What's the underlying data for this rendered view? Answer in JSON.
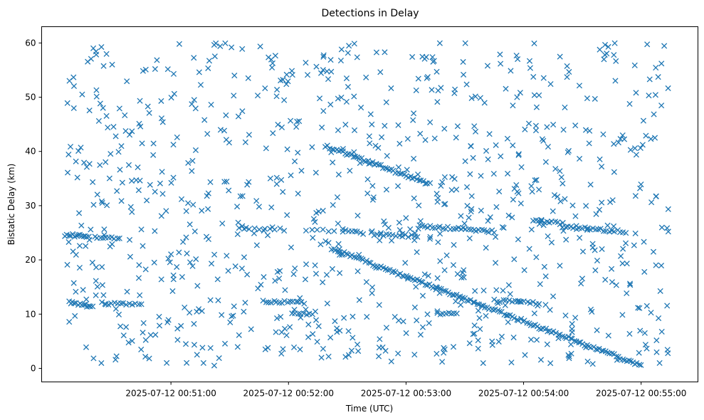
{
  "chart_data": {
    "type": "scatter",
    "title": "Detections in Delay",
    "xlabel": "Time (UTC)",
    "ylabel": "Bistatic Delay (km)",
    "marker": "x",
    "color": "#1f77b4",
    "grid": false,
    "xlim": [
      "2025-07-12 00:49:54",
      "2025-07-12 00:55:29"
    ],
    "ylim": [
      -2.5,
      63
    ],
    "x_ticks": [
      "2025-07-12 00:51:00",
      "2025-07-12 00:52:00",
      "2025-07-12 00:53:00",
      "2025-07-12 00:54:00",
      "2025-07-12 00:55:00"
    ],
    "y_ticks": [
      0,
      10,
      20,
      30,
      40,
      50,
      60
    ],
    "tracks": [
      {
        "x": [
          "2025-07-12 00:50:06",
          "2025-07-12 00:50:18"
        ],
        "y": [
          24.6,
          24.4
        ],
        "points": 14
      },
      {
        "x": [
          "2025-07-12 00:50:21",
          "2025-07-12 00:50:34"
        ],
        "y": [
          24.3,
          24.1
        ],
        "points": 10
      },
      {
        "x": [
          "2025-07-12 00:50:08",
          "2025-07-12 00:50:20"
        ],
        "y": [
          12.2,
          11.4
        ],
        "points": 14
      },
      {
        "x": [
          "2025-07-12 00:50:25",
          "2025-07-12 00:50:45"
        ],
        "y": [
          12.0,
          11.8
        ],
        "points": 14
      },
      {
        "x": [
          "2025-07-12 00:51:35",
          "2025-07-12 00:51:58"
        ],
        "y": [
          25.9,
          25.6
        ],
        "points": 10
      },
      {
        "x": [
          "2025-07-12 00:51:47",
          "2025-07-12 00:52:08"
        ],
        "y": [
          12.3,
          12.1
        ],
        "points": 16
      },
      {
        "x": [
          "2025-07-12 00:52:02",
          "2025-07-12 00:52:12"
        ],
        "y": [
          10.2,
          10.0
        ],
        "points": 8
      },
      {
        "x": [
          "2025-07-12 00:52:09",
          "2025-07-12 00:52:23"
        ],
        "y": [
          25.6,
          25.4
        ],
        "points": 6
      },
      {
        "x": [
          "2025-07-12 00:52:19",
          "2025-07-12 00:53:12"
        ],
        "y": [
          41.0,
          34.0
        ],
        "points": 50
      },
      {
        "x": [
          "2025-07-12 00:52:28",
          "2025-07-12 00:52:38"
        ],
        "y": [
          25.4,
          25.0
        ],
        "points": 8
      },
      {
        "x": [
          "2025-07-12 00:52:22",
          "2025-07-12 00:55:00"
        ],
        "y": [
          22.1,
          0.5
        ],
        "points": 150
      },
      {
        "x": [
          "2025-07-12 00:52:42",
          "2025-07-12 00:53:06"
        ],
        "y": [
          24.8,
          24.3
        ],
        "points": 16
      },
      {
        "x": [
          "2025-07-12 00:53:07",
          "2025-07-12 00:53:45"
        ],
        "y": [
          26.3,
          25.2
        ],
        "points": 30
      },
      {
        "x": [
          "2025-07-12 00:53:16",
          "2025-07-12 00:53:26"
        ],
        "y": [
          10.2,
          10.0
        ],
        "points": 8
      },
      {
        "x": [
          "2025-07-12 00:53:45",
          "2025-07-12 00:54:08"
        ],
        "y": [
          12.5,
          12.0
        ],
        "points": 16
      },
      {
        "x": [
          "2025-07-12 00:54:05",
          "2025-07-12 00:54:20"
        ],
        "y": [
          27.4,
          26.6
        ],
        "points": 12
      },
      {
        "x": [
          "2025-07-12 00:54:20",
          "2025-07-12 00:54:52"
        ],
        "y": [
          26.1,
          25.2
        ],
        "points": 24
      }
    ],
    "clutter_points": 900,
    "clutter_x_range": [
      "2025-07-12 00:50:07",
      "2025-07-12 00:55:14"
    ],
    "clutter_y_range": [
      0.5,
      60
    ]
  }
}
